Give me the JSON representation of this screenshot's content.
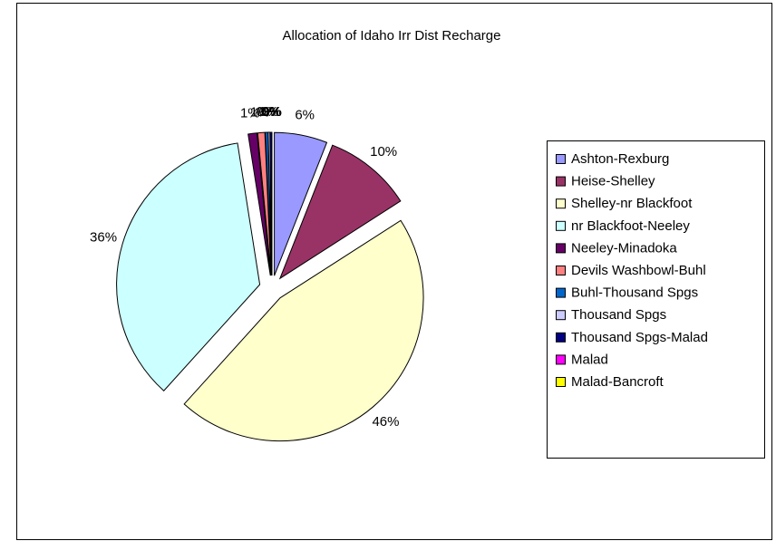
{
  "chart_data": {
    "type": "pie",
    "title": "Allocation of Idaho Irr Dist Recharge",
    "categories": [
      "Ashton-Rexburg",
      "Heise-Shelley",
      "Shelley-nr Blackfoot",
      "nr Blackfoot-Neeley",
      "Neeley-Minadoka",
      "Devils Washbowl-Buhl",
      "Buhl-Thousand Spgs",
      "Thousand Spgs",
      "Thousand Spgs-Malad",
      "Malad",
      "Malad-Bancroft"
    ],
    "values": [
      6,
      10,
      46,
      36,
      1,
      0.8,
      0.3,
      0.2,
      0.2,
      0,
      0
    ],
    "value_labels": [
      "6%",
      "10%",
      "46%",
      "36%",
      "1%",
      "1%",
      "0%",
      "0%",
      "0%",
      "0%",
      "0%"
    ],
    "colors": [
      "#9999ff",
      "#993366",
      "#ffffcc",
      "#ccffff",
      "#660066",
      "#ff8080",
      "#0066cc",
      "#ccccff",
      "#000080",
      "#ff00ff",
      "#ffff00"
    ],
    "legend": "right"
  }
}
